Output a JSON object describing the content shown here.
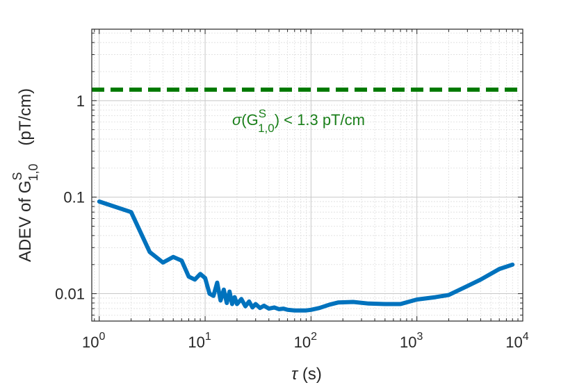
{
  "chart_data": {
    "type": "line",
    "xscale": "log",
    "yscale": "log",
    "xlim": [
      0.85,
      10000
    ],
    "ylim": [
      0.0052,
      5.5
    ],
    "grid": true,
    "xlabel": {
      "symbol": "τ",
      "unit": " (s)"
    },
    "ylabel": {
      "prefix": "ADEV of G",
      "sup": "S",
      "sub": "1,0",
      "unit": "(pT/cm)"
    },
    "xticks": [
      {
        "value": 1,
        "base": "10",
        "exp": "0"
      },
      {
        "value": 10,
        "base": "10",
        "exp": "1"
      },
      {
        "value": 100,
        "base": "10",
        "exp": "2"
      },
      {
        "value": 1000,
        "base": "10",
        "exp": "3"
      },
      {
        "value": 10000,
        "base": "10",
        "exp": "4"
      }
    ],
    "yticks": [
      {
        "value": 0.01,
        "label": "0.01"
      },
      {
        "value": 0.1,
        "label": "0.1"
      },
      {
        "value": 1,
        "label": "1"
      }
    ],
    "series": [
      {
        "color": "#0072bd",
        "x": [
          1,
          2,
          3,
          4,
          5,
          6,
          7,
          8,
          9,
          10,
          11,
          12,
          13,
          14,
          15,
          16,
          17,
          18,
          19,
          20,
          22,
          24,
          26,
          28,
          30,
          33,
          36,
          40,
          45,
          50,
          55,
          60,
          70,
          80,
          90,
          100,
          120,
          150,
          180,
          250,
          350,
          500,
          700,
          1000,
          1500,
          2000,
          3000,
          4000,
          6000,
          8000
        ],
        "y": [
          0.09,
          0.07,
          0.027,
          0.021,
          0.024,
          0.022,
          0.015,
          0.014,
          0.016,
          0.0145,
          0.01,
          0.0095,
          0.013,
          0.0085,
          0.011,
          0.008,
          0.0105,
          0.0078,
          0.0092,
          0.0078,
          0.0088,
          0.0074,
          0.0083,
          0.0072,
          0.0078,
          0.0071,
          0.0075,
          0.007,
          0.0072,
          0.0069,
          0.007,
          0.0068,
          0.0067,
          0.0067,
          0.0067,
          0.0068,
          0.0071,
          0.0077,
          0.0081,
          0.0082,
          0.0079,
          0.0078,
          0.0078,
          0.0087,
          0.0092,
          0.0097,
          0.012,
          0.014,
          0.018,
          0.02
        ]
      },
      {
        "color": "#007a00",
        "style": "dashed",
        "x": [
          0.85,
          10000
        ],
        "y": [
          1.3,
          1.3
        ]
      }
    ],
    "annotations": [
      {
        "prefix": "σ",
        "mid": "(G",
        "sup": "S",
        "sub": "1,0",
        "suffix": ") < 1.3 pT/cm"
      }
    ]
  }
}
